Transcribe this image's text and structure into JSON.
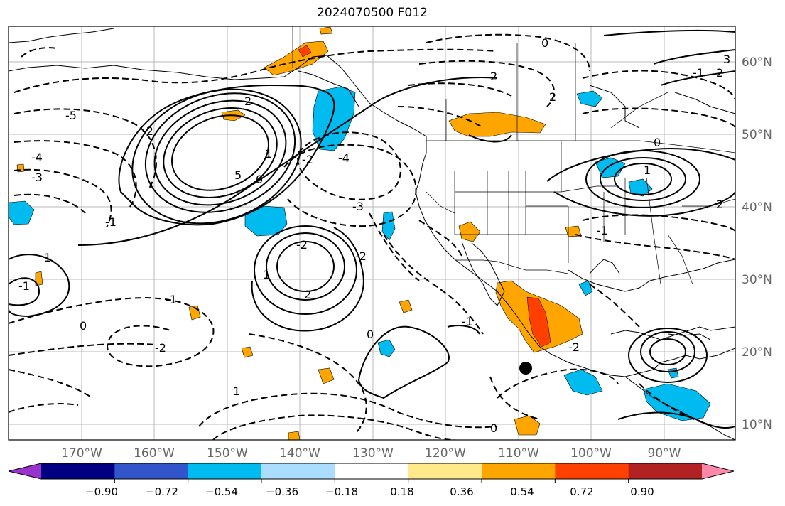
{
  "title": "2024070500 F012",
  "map": {
    "lon_ticks": [
      "170°W",
      "160°W",
      "150°W",
      "140°W",
      "130°W",
      "120°W",
      "110°W",
      "100°W",
      "90°W"
    ],
    "lat_ticks": [
      "60°N",
      "50°N",
      "40°N",
      "30°N",
      "20°N",
      "10°N"
    ],
    "contour_labels": [
      "0",
      "2",
      "2",
      "-1",
      "3",
      "2",
      "-2",
      "-3",
      "-4",
      "-5",
      "-2",
      "5",
      "1",
      "2",
      "-1",
      "1",
      "0",
      "-2",
      "-3",
      "-4",
      "1",
      "-1",
      "2",
      "-2",
      "0",
      "-1",
      "-2",
      "0",
      "-1",
      "1",
      "0",
      "-2",
      "0",
      "-1",
      "2",
      "1"
    ],
    "marker": "storm-center-dot"
  },
  "colorbar": {
    "labels": [
      "−0.90",
      "−0.72",
      "−0.54",
      "−0.36",
      "−0.18",
      "0.18",
      "0.36",
      "0.54",
      "0.72",
      "0.90"
    ],
    "colors": [
      "#9933cc",
      "#000080",
      "#3355cc",
      "#00bbf0",
      "#aaddff",
      "#ffffff",
      "#ffe98a",
      "#ffa500",
      "#ff4000",
      "#b22222",
      "#ff88aa"
    ]
  }
}
